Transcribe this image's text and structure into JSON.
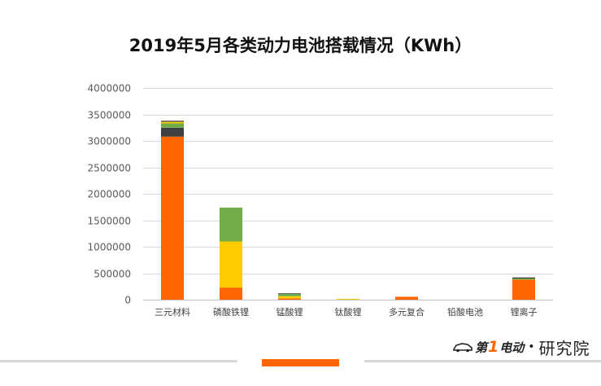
{
  "chart_data": {
    "type": "bar",
    "stacked": true,
    "title": "2019年5月各类动力电池搭载情况（KWh）",
    "categories": [
      "三元材料",
      "磷酸铁锂",
      "锰酸锂",
      "钛酸锂",
      "多元复合",
      "铅酸电池",
      "锂离子"
    ],
    "series": [
      {
        "name": "orange",
        "color": "#ff6600",
        "values": [
          3080000,
          230000,
          25000,
          0,
          55000,
          0,
          380000
        ]
      },
      {
        "name": "yellow",
        "color": "#ffcc00",
        "values": [
          0,
          870000,
          40000,
          15000,
          0,
          0,
          0
        ]
      },
      {
        "name": "green",
        "color": "#70ad47",
        "values": [
          0,
          640000,
          45000,
          0,
          0,
          0,
          20000
        ]
      },
      {
        "name": "dark",
        "color": "#404040",
        "values": [
          170000,
          0,
          10000,
          0,
          0,
          0,
          20000
        ]
      },
      {
        "name": "green-top",
        "color": "#70ad47",
        "values": [
          80000,
          0,
          0,
          0,
          0,
          0,
          0
        ]
      },
      {
        "name": "yellow-top",
        "color": "#ffcc00",
        "values": [
          30000,
          0,
          0,
          0,
          0,
          0,
          0
        ]
      },
      {
        "name": "dark-top",
        "color": "#404040",
        "values": [
          20000,
          0,
          0,
          0,
          0,
          0,
          0
        ]
      }
    ],
    "y_ticks": [
      "0",
      "500000",
      "1000000",
      "1500000",
      "2000000",
      "2500000",
      "3000000",
      "3500000",
      "4000000"
    ],
    "ylim": [
      0,
      4000000
    ],
    "xlabel": "",
    "ylabel": "",
    "grid": true
  },
  "brand": {
    "logo_text_a": "第",
    "logo_one": "1",
    "logo_text_b": "电动",
    "separator": "•",
    "name": "研究院"
  },
  "colors": {
    "accent": "#ff6600",
    "grid": "#d9d9d9",
    "footer_line": "#d9d9d9"
  }
}
